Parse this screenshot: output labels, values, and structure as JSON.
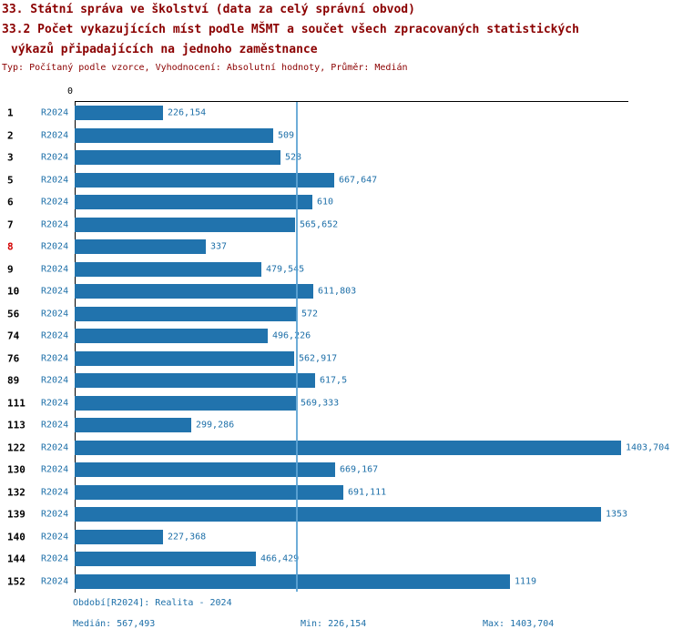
{
  "header": {
    "title1": "33. Státní správa ve školství (data za celý správní obvod)",
    "title2": "33.2 Počet vykazujících míst podle MŠMT a součet všech zpracovaných statistických",
    "title3": "výkazů připadajících na jednoho zaměstnance",
    "subtitle": "Typ: Počítaný podle vzorce, Vyhodnocení: Absolutní hodnoty, Průměr: Medián"
  },
  "chart_data": {
    "type": "bar",
    "orientation": "horizontal",
    "title": "33.2 Počet vykazujících míst podle MŠMT a součet všech zpracovaných statistických výkazů připadajících na jednoho zaměstnance",
    "axis_zero_label": "0",
    "series_label": "R2024",
    "xlim": [
      0,
      1403.704
    ],
    "median_value": 567.493,
    "bar_color": "#2173ad",
    "median_line_color": "#5ea4d4",
    "highlight_color": "#d40000",
    "rows": [
      {
        "id": "1",
        "period": "R2024",
        "value": 226.154,
        "label": "226,154",
        "highlight": false
      },
      {
        "id": "2",
        "period": "R2024",
        "value": 509,
        "label": "509",
        "highlight": false
      },
      {
        "id": "3",
        "period": "R2024",
        "value": 528,
        "label": "528",
        "highlight": false
      },
      {
        "id": "5",
        "period": "R2024",
        "value": 667.647,
        "label": "667,647",
        "highlight": false
      },
      {
        "id": "6",
        "period": "R2024",
        "value": 610,
        "label": "610",
        "highlight": false
      },
      {
        "id": "7",
        "period": "R2024",
        "value": 565.652,
        "label": "565,652",
        "highlight": false
      },
      {
        "id": "8",
        "period": "R2024",
        "value": 337,
        "label": "337",
        "highlight": true
      },
      {
        "id": "9",
        "period": "R2024",
        "value": 479.545,
        "label": "479,545",
        "highlight": false
      },
      {
        "id": "10",
        "period": "R2024",
        "value": 611.803,
        "label": "611,803",
        "highlight": false
      },
      {
        "id": "56",
        "period": "R2024",
        "value": 572,
        "label": "572",
        "highlight": false
      },
      {
        "id": "74",
        "period": "R2024",
        "value": 496.226,
        "label": "496,226",
        "highlight": false
      },
      {
        "id": "76",
        "period": "R2024",
        "value": 562.917,
        "label": "562,917",
        "highlight": false
      },
      {
        "id": "89",
        "period": "R2024",
        "value": 617.5,
        "label": "617,5",
        "highlight": false
      },
      {
        "id": "111",
        "period": "R2024",
        "value": 569.333,
        "label": "569,333",
        "highlight": false
      },
      {
        "id": "113",
        "period": "R2024",
        "value": 299.286,
        "label": "299,286",
        "highlight": false
      },
      {
        "id": "122",
        "period": "R2024",
        "value": 1403.704,
        "label": "1403,704",
        "highlight": false
      },
      {
        "id": "130",
        "period": "R2024",
        "value": 669.167,
        "label": "669,167",
        "highlight": false
      },
      {
        "id": "132",
        "period": "R2024",
        "value": 691.111,
        "label": "691,111",
        "highlight": false
      },
      {
        "id": "139",
        "period": "R2024",
        "value": 1353,
        "label": "1353",
        "highlight": false
      },
      {
        "id": "140",
        "period": "R2024",
        "value": 227.368,
        "label": "227,368",
        "highlight": false
      },
      {
        "id": "144",
        "period": "R2024",
        "value": 466.429,
        "label": "466,429",
        "highlight": false
      },
      {
        "id": "152",
        "period": "R2024",
        "value": 1119,
        "label": "1119",
        "highlight": false
      }
    ]
  },
  "footer": {
    "period_line": "Období[R2024]: Realita - 2024",
    "median": "Medián: 567,493",
    "min": "Min: 226,154",
    "max": "Max: 1403,704"
  }
}
